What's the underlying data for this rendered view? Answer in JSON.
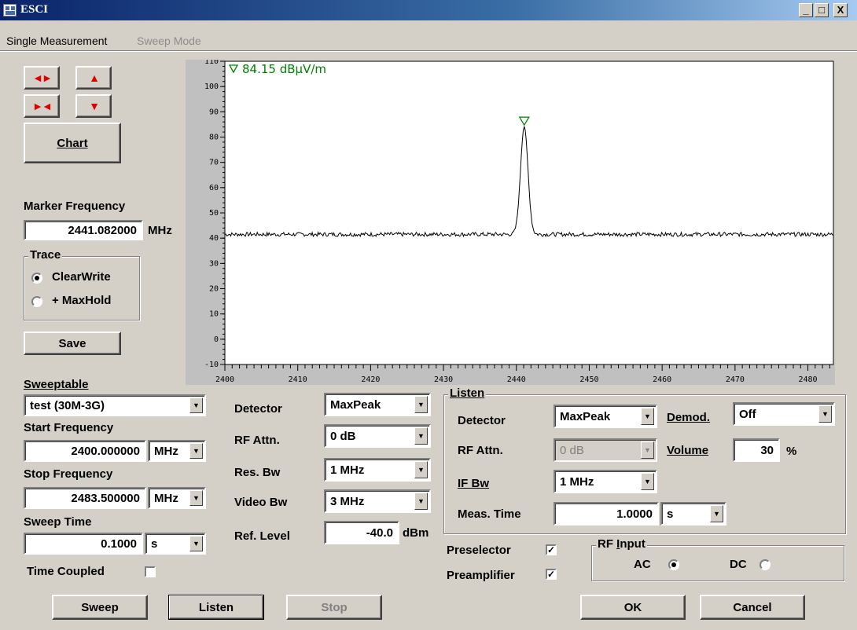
{
  "window": {
    "title": "ESCI",
    "controls": [
      "_",
      "□",
      "X"
    ]
  },
  "menu": [
    {
      "label": "Single Measurement",
      "enabled": true
    },
    {
      "label": "Sweep Mode",
      "enabled": false
    }
  ],
  "left_panel": {
    "chart_button": "Chart",
    "marker_frequency_label": "Marker Frequency",
    "marker_frequency_value": "2441.082000",
    "marker_frequency_unit": "MHz",
    "trace": {
      "legend": "Trace",
      "options": [
        {
          "label": "ClearWrite",
          "selected": true
        },
        {
          "label": "+ MaxHold",
          "selected": false
        }
      ]
    },
    "save_button": "Save"
  },
  "sweep": {
    "sweeptable_label": "Sweeptable",
    "sweeptable_value": "test (30M-3G)",
    "start_frequency_label": "Start Frequency",
    "start_frequency_value": "2400.000000",
    "start_frequency_unit": "MHz",
    "stop_frequency_label": "Stop Frequency",
    "stop_frequency_value": "2483.500000",
    "stop_frequency_unit": "MHz",
    "sweep_time_label": "Sweep Time",
    "sweep_time_value": "0.1000",
    "sweep_time_unit": "s",
    "time_coupled_label": "Time Coupled",
    "time_coupled_checked": false
  },
  "settings": {
    "detector_label": "Detector",
    "detector_value": "MaxPeak",
    "rf_attn_label": "RF Attn.",
    "rf_attn_value": "0 dB",
    "res_bw_label": "Res. Bw",
    "res_bw_value": "1 MHz",
    "video_bw_label": "Video Bw",
    "video_bw_value": "3 MHz",
    "ref_level_label": "Ref. Level",
    "ref_level_value": "-40.0",
    "ref_level_unit": "dBm"
  },
  "listen": {
    "legend": "Listen",
    "detector_label": "Detector",
    "detector_value": "MaxPeak",
    "demod_label": "Demod.",
    "demod_value": "Off",
    "rf_attn_label": "RF Attn.",
    "rf_attn_value": "0 dB",
    "volume_label": "Volume",
    "volume_value": "30",
    "volume_unit": "%",
    "if_bw_label": "IF Bw",
    "if_bw_value": "1 MHz",
    "meas_time_label": "Meas. Time",
    "meas_time_value": "1.0000",
    "meas_time_unit": "s"
  },
  "preselector": {
    "label": "Preselector",
    "checked": true
  },
  "preamplifier": {
    "label": "Preamplifier",
    "checked": true
  },
  "rf_input": {
    "legend": "RF Input",
    "ac_label": "AC",
    "ac_selected": true,
    "dc_label": "DC",
    "dc_selected": false
  },
  "bottom_buttons": {
    "sweep": "Sweep",
    "listen": "Listen",
    "stop": "Stop",
    "ok": "OK",
    "cancel": "Cancel"
  },
  "colors": {
    "marker": "#008000",
    "trace": "#000000",
    "arrow": "#e00000",
    "title_bar": "#0a246a"
  },
  "chart_data": {
    "type": "line",
    "marker_readout": "84.15 dBµV/m",
    "marker": {
      "x": 2441.08,
      "y": 84.15
    },
    "x_ticks": [
      "2400",
      "2410",
      "2420",
      "2430",
      "2440",
      "2450",
      "2460",
      "2470",
      "2480"
    ],
    "y_ticks": [
      "110",
      "100",
      "90",
      "80",
      "70",
      "60",
      "50",
      "40",
      "30",
      "20",
      "10",
      "0",
      "-10"
    ],
    "xlim": [
      2400,
      2483.5
    ],
    "ylim": [
      -10,
      110
    ],
    "noise_floor": 41.5,
    "peak": {
      "x": 2441.08,
      "y": 84.15,
      "width_mhz": 1.2
    }
  }
}
